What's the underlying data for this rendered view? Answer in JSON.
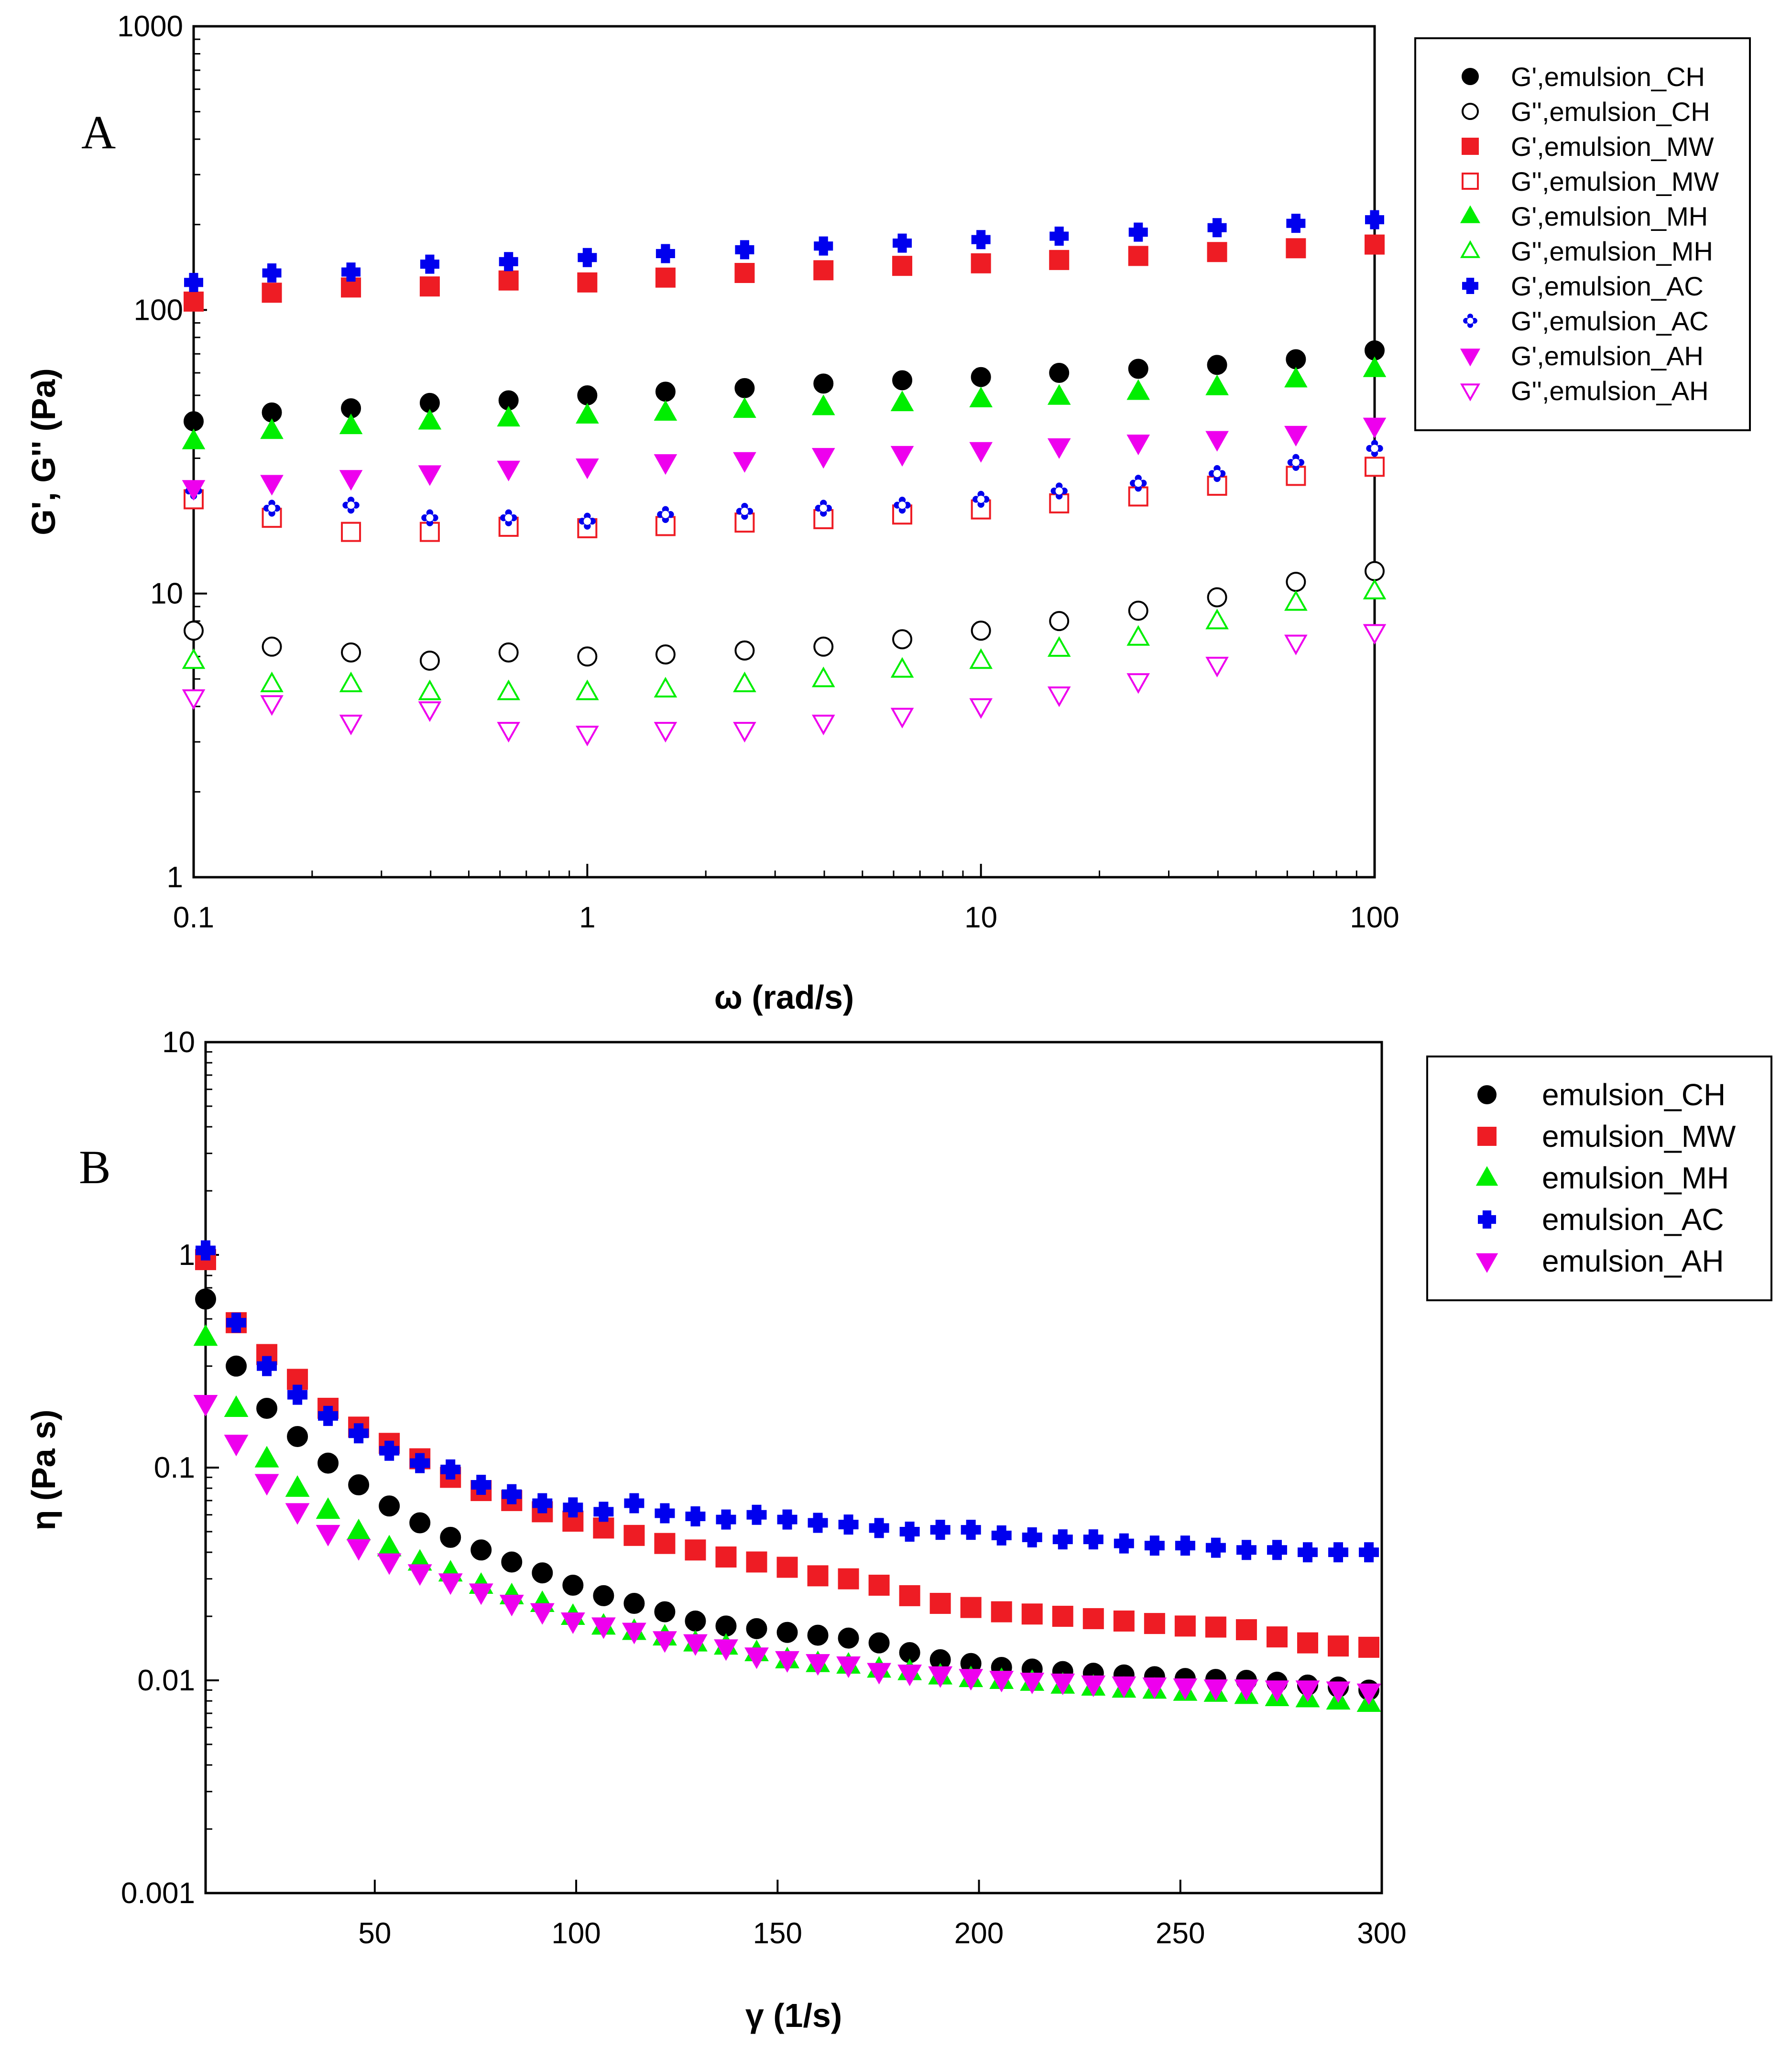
{
  "chart_data": [
    {
      "type": "scatter",
      "panel_label": "A",
      "xscale": "log",
      "yscale": "log",
      "xlabel": "ω (rad/s)",
      "ylabel": "G', G'' (Pa)",
      "xlim": [
        0.1,
        100
      ],
      "ylim": [
        1,
        1000
      ],
      "xticks": [
        "0.1",
        "1",
        "10",
        "100"
      ],
      "yticks": [
        "1",
        "10",
        "100",
        "1000"
      ],
      "legend_position": "top-right",
      "x": [
        0.1,
        0.158,
        0.251,
        0.398,
        0.631,
        1,
        1.58,
        2.51,
        3.98,
        6.31,
        10,
        15.8,
        25.1,
        39.8,
        63.1,
        100
      ],
      "series": [
        {
          "name": "G',emulsion_CH",
          "marker": "circle",
          "filled": true,
          "color": "#000000",
          "values": [
            40.5,
            43.5,
            45,
            47,
            48,
            50,
            51.5,
            53,
            55,
            56.5,
            58,
            60,
            62,
            64,
            67,
            72
          ]
        },
        {
          "name": "G'',emulsion_CH",
          "marker": "circle",
          "filled": false,
          "color": "#000000",
          "values": [
            7.4,
            6.5,
            6.2,
            5.8,
            6.2,
            6.0,
            6.1,
            6.3,
            6.5,
            6.9,
            7.4,
            8.0,
            8.7,
            9.7,
            11.0,
            12.0
          ]
        },
        {
          "name": "G',emulsion_MW",
          "marker": "square",
          "filled": true,
          "color": "#ee1c24",
          "values": [
            107,
            115,
            120,
            121,
            127,
            125,
            130,
            135,
            138,
            143,
            146,
            150,
            155,
            160,
            165,
            170
          ]
        },
        {
          "name": "G'',emulsion_MW",
          "marker": "square",
          "filled": false,
          "color": "#ee1c24",
          "values": [
            21.5,
            18.5,
            16.5,
            16.5,
            17.2,
            17.0,
            17.3,
            17.8,
            18.3,
            19.0,
            19.8,
            20.8,
            22.0,
            24.0,
            26.0,
            28.0
          ]
        },
        {
          "name": "G',emulsion_MH",
          "marker": "triangle-up",
          "filled": true,
          "color": "#00ee00",
          "values": [
            34.5,
            37.5,
            39,
            40.5,
            41.5,
            42.5,
            43.5,
            44.5,
            45.5,
            47,
            48.5,
            49.5,
            51.5,
            53.5,
            57,
            62
          ]
        },
        {
          "name": "G'',emulsion_MH",
          "marker": "triangle-up",
          "filled": false,
          "color": "#00ee00",
          "values": [
            5.8,
            4.8,
            4.8,
            4.5,
            4.5,
            4.5,
            4.6,
            4.8,
            5.0,
            5.4,
            5.8,
            6.4,
            7.0,
            8.0,
            9.3,
            10.2
          ]
        },
        {
          "name": "G',emulsion_AC",
          "marker": "cross",
          "filled": true,
          "color": "#0000ee",
          "values": [
            125,
            135,
            136,
            145,
            148,
            153,
            158,
            163,
            168,
            172,
            177,
            182,
            188,
            195,
            202,
            208
          ]
        },
        {
          "name": "G'',emulsion_AC",
          "marker": "cross",
          "filled": false,
          "color": "#0000ee",
          "values": [
            23.0,
            20.0,
            20.5,
            18.5,
            18.5,
            18.0,
            19.0,
            19.5,
            20.0,
            20.5,
            21.5,
            23.0,
            24.5,
            26.5,
            29.0,
            32.5
          ]
        },
        {
          "name": "G',emulsion_AH",
          "marker": "triangle-down",
          "filled": true,
          "color": "#ee00ee",
          "values": [
            23.5,
            24.5,
            25.5,
            26.5,
            27.5,
            28.0,
            29.0,
            29.5,
            30.5,
            31.0,
            32.0,
            33.0,
            34.0,
            35.0,
            36.5,
            39.0
          ]
        },
        {
          "name": "G'',emulsion_AH",
          "marker": "triangle-down",
          "filled": false,
          "color": "#ee00ee",
          "values": [
            4.3,
            4.1,
            3.5,
            3.9,
            3.3,
            3.2,
            3.3,
            3.3,
            3.5,
            3.7,
            4.0,
            4.4,
            4.9,
            5.6,
            6.7,
            7.3
          ]
        }
      ]
    },
    {
      "type": "scatter",
      "panel_label": "B",
      "xscale": "linear",
      "yscale": "log",
      "xlabel": "γ (1/s)",
      "ylabel": "η (Pa s)",
      "xlim": [
        8,
        300
      ],
      "ylim": [
        0.001,
        10
      ],
      "xticks": [
        "50",
        "100",
        "150",
        "200",
        "250",
        "300"
      ],
      "xtick_values": [
        50,
        100,
        150,
        200,
        250,
        300
      ],
      "yticks": [
        "0.001",
        "0.01",
        "0.1",
        "1",
        "10"
      ],
      "legend_position": "top-right",
      "x": [
        8,
        15.6,
        23.2,
        30.8,
        38.4,
        46,
        53.6,
        61.2,
        68.8,
        76.4,
        84,
        91.6,
        99.2,
        106.8,
        114.4,
        122,
        129.6,
        137.2,
        144.8,
        152.4,
        160,
        167.6,
        175.2,
        182.8,
        190.4,
        198,
        205.6,
        213.2,
        220.8,
        228.4,
        236,
        243.6,
        251.2,
        258.8,
        266.4,
        274,
        281.6,
        289.2,
        296.8
      ],
      "series": [
        {
          "name": "emulsion_CH",
          "marker": "circle",
          "filled": true,
          "color": "#000000",
          "values": [
            0.62,
            0.3,
            0.19,
            0.14,
            0.105,
            0.083,
            0.066,
            0.055,
            0.047,
            0.041,
            0.036,
            0.032,
            0.028,
            0.025,
            0.023,
            0.021,
            0.019,
            0.018,
            0.0175,
            0.0168,
            0.0163,
            0.0158,
            0.015,
            0.0135,
            0.0125,
            0.012,
            0.0115,
            0.0113,
            0.011,
            0.0108,
            0.0106,
            0.0104,
            0.0102,
            0.0101,
            0.01,
            0.0098,
            0.0095,
            0.0093,
            0.009
          ]
        },
        {
          "name": "emulsion_MW",
          "marker": "square",
          "filled": true,
          "color": "#ee1c24",
          "values": [
            0.95,
            0.48,
            0.34,
            0.26,
            0.19,
            0.155,
            0.13,
            0.11,
            0.09,
            0.078,
            0.07,
            0.062,
            0.056,
            0.052,
            0.048,
            0.044,
            0.041,
            0.038,
            0.036,
            0.034,
            0.031,
            0.03,
            0.028,
            0.025,
            0.023,
            0.022,
            0.021,
            0.0205,
            0.02,
            0.0195,
            0.019,
            0.0185,
            0.018,
            0.0178,
            0.0173,
            0.016,
            0.015,
            0.0145,
            0.0143
          ]
        },
        {
          "name": "emulsion_MH",
          "marker": "triangle-up",
          "filled": true,
          "color": "#00ee00",
          "values": [
            0.41,
            0.19,
            0.11,
            0.08,
            0.063,
            0.05,
            0.042,
            0.036,
            0.032,
            0.028,
            0.025,
            0.023,
            0.02,
            0.018,
            0.017,
            0.016,
            0.015,
            0.0145,
            0.0135,
            0.0125,
            0.012,
            0.0118,
            0.0113,
            0.011,
            0.0105,
            0.0102,
            0.01,
            0.0098,
            0.0095,
            0.0093,
            0.0091,
            0.009,
            0.0088,
            0.0087,
            0.0085,
            0.0083,
            0.0082,
            0.008,
            0.0078
          ]
        },
        {
          "name": "emulsion_AC",
          "marker": "cross",
          "filled": true,
          "color": "#0000ee",
          "values": [
            1.05,
            0.48,
            0.3,
            0.22,
            0.175,
            0.145,
            0.12,
            0.105,
            0.098,
            0.083,
            0.075,
            0.068,
            0.065,
            0.062,
            0.068,
            0.061,
            0.059,
            0.057,
            0.06,
            0.057,
            0.055,
            0.054,
            0.052,
            0.05,
            0.051,
            0.051,
            0.048,
            0.047,
            0.046,
            0.046,
            0.044,
            0.043,
            0.043,
            0.042,
            0.041,
            0.041,
            0.04,
            0.04,
            0.04
          ]
        },
        {
          "name": "emulsion_AH",
          "marker": "triangle-down",
          "filled": true,
          "color": "#ee00ee",
          "values": [
            0.2,
            0.13,
            0.085,
            0.062,
            0.049,
            0.042,
            0.036,
            0.032,
            0.029,
            0.026,
            0.023,
            0.021,
            0.019,
            0.018,
            0.017,
            0.0155,
            0.015,
            0.0142,
            0.013,
            0.0125,
            0.0121,
            0.0118,
            0.011,
            0.0108,
            0.0106,
            0.0103,
            0.0101,
            0.0099,
            0.0098,
            0.0096,
            0.0095,
            0.0094,
            0.0093,
            0.0092,
            0.0092,
            0.0091,
            0.0091,
            0.009,
            0.0088
          ]
        }
      ]
    }
  ]
}
